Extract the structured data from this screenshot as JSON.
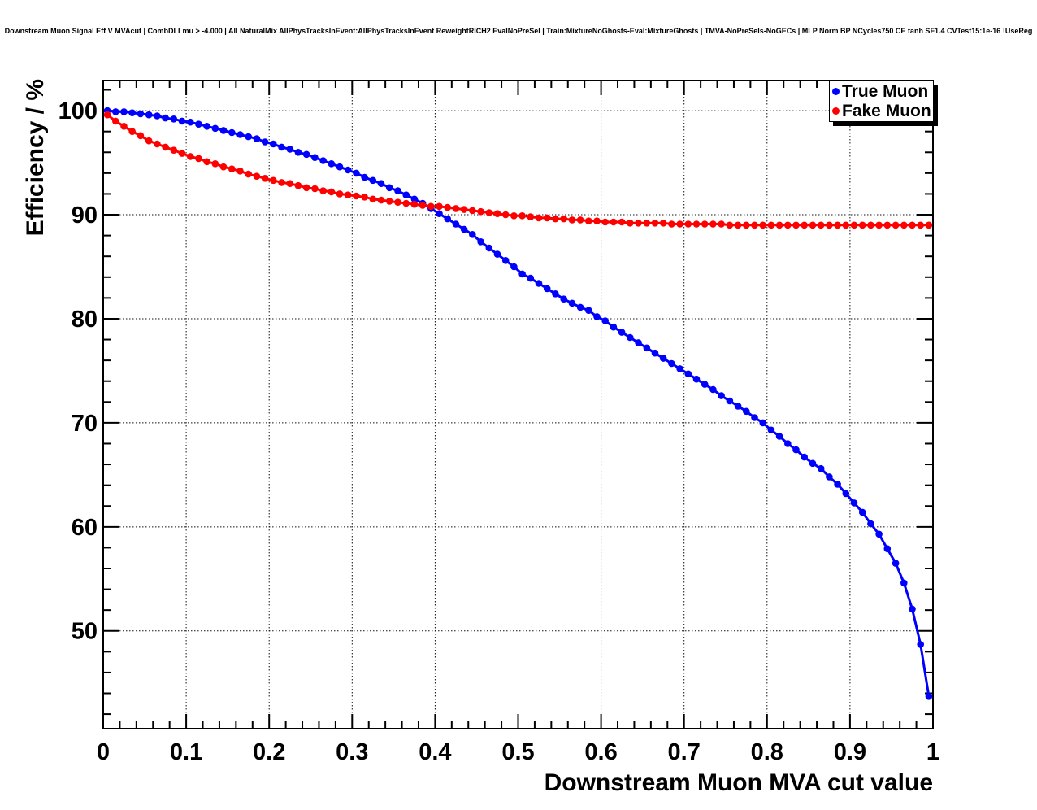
{
  "chart_data": {
    "type": "scatter",
    "title": "Downstream Muon Signal Eff V MVAcut | CombDLLmu > -4.000 | All NaturalMix AllPhysTracksInEvent:AllPhysTracksInEvent ReweightRICH2 EvalNoPreSel | Train:MixtureNoGhosts-Eval:MixtureGhosts | TMVA-NoPreSels-NoGECs | MLP Norm BP NCycles750 CE tanh SF1.4 CVTest15:1e-16 !UseReg",
    "xlabel": "Downstream Muon MVA cut value",
    "ylabel": "Efficiency / %",
    "xlim": [
      0,
      1
    ],
    "ylim": [
      40.6,
      102.9
    ],
    "x_major_ticks": [
      0,
      0.1,
      0.2,
      0.3,
      0.4,
      0.5,
      0.6,
      0.7,
      0.8,
      0.9,
      1
    ],
    "x_tick_labels": [
      "0",
      "0.1",
      "0.2",
      "0.3",
      "0.4",
      "0.5",
      "0.6",
      "0.7",
      "0.8",
      "0.9",
      "1"
    ],
    "x_minor_step": 0.02,
    "y_major_ticks": [
      50,
      60,
      70,
      80,
      90,
      100
    ],
    "y_tick_labels": [
      "50",
      "60",
      "70",
      "80",
      "90",
      "100"
    ],
    "y_minor_step": 2,
    "grid": "dotted-black-at-major-ticks",
    "marker": "filled-circle",
    "legend_position": "top-right",
    "frame_color": "#000000",
    "x": [
      0.005,
      0.015,
      0.025,
      0.035,
      0.045,
      0.055,
      0.065,
      0.075,
      0.085,
      0.095,
      0.105,
      0.115,
      0.125,
      0.135,
      0.145,
      0.155,
      0.165,
      0.175,
      0.185,
      0.195,
      0.205,
      0.215,
      0.225,
      0.235,
      0.245,
      0.255,
      0.265,
      0.275,
      0.285,
      0.295,
      0.305,
      0.315,
      0.325,
      0.335,
      0.345,
      0.355,
      0.365,
      0.375,
      0.385,
      0.395,
      0.405,
      0.415,
      0.425,
      0.435,
      0.445,
      0.455,
      0.465,
      0.475,
      0.485,
      0.495,
      0.505,
      0.515,
      0.525,
      0.535,
      0.545,
      0.555,
      0.565,
      0.575,
      0.585,
      0.595,
      0.605,
      0.615,
      0.625,
      0.635,
      0.645,
      0.655,
      0.665,
      0.675,
      0.685,
      0.695,
      0.705,
      0.715,
      0.725,
      0.735,
      0.745,
      0.755,
      0.765,
      0.775,
      0.785,
      0.795,
      0.805,
      0.815,
      0.825,
      0.835,
      0.845,
      0.855,
      0.865,
      0.875,
      0.885,
      0.895,
      0.905,
      0.915,
      0.925,
      0.935,
      0.945,
      0.955,
      0.965,
      0.975,
      0.985,
      0.995
    ],
    "series": [
      {
        "name": "True Muon",
        "color": "#0000ff",
        "values": [
          100.0,
          99.9,
          99.9,
          99.8,
          99.7,
          99.6,
          99.5,
          99.3,
          99.2,
          99.0,
          98.9,
          98.7,
          98.5,
          98.3,
          98.1,
          97.9,
          97.7,
          97.5,
          97.3,
          97.0,
          96.8,
          96.5,
          96.3,
          96.0,
          95.8,
          95.5,
          95.2,
          94.9,
          94.6,
          94.3,
          94.0,
          93.6,
          93.3,
          93.0,
          92.6,
          92.3,
          91.9,
          91.5,
          91.1,
          90.6,
          90.1,
          89.6,
          89.1,
          88.6,
          88.1,
          87.4,
          86.8,
          86.2,
          85.6,
          85.0,
          84.3,
          83.9,
          83.4,
          82.9,
          82.4,
          81.9,
          81.5,
          81.1,
          80.8,
          80.2,
          79.8,
          79.2,
          78.7,
          78.2,
          77.7,
          77.2,
          76.7,
          76.2,
          75.7,
          75.2,
          74.7,
          74.2,
          73.7,
          73.2,
          72.6,
          72.1,
          71.6,
          71.1,
          70.5,
          70.0,
          69.3,
          68.7,
          68.0,
          67.4,
          66.7,
          66.1,
          65.6,
          64.8,
          64.1,
          63.2,
          62.3,
          61.4,
          60.3,
          59.3,
          57.9,
          56.5,
          54.6,
          52.1,
          48.7,
          43.7
        ]
      },
      {
        "name": "Fake Muon",
        "color": "#ff0000",
        "values": [
          99.6,
          99.0,
          98.5,
          98.0,
          97.6,
          97.1,
          96.8,
          96.5,
          96.2,
          95.9,
          95.6,
          95.4,
          95.1,
          94.9,
          94.6,
          94.4,
          94.2,
          93.9,
          93.7,
          93.5,
          93.3,
          93.1,
          93.0,
          92.8,
          92.6,
          92.5,
          92.3,
          92.2,
          92.0,
          91.9,
          91.8,
          91.7,
          91.5,
          91.4,
          91.3,
          91.2,
          91.1,
          91.0,
          90.9,
          90.8,
          90.8,
          90.7,
          90.6,
          90.5,
          90.4,
          90.3,
          90.2,
          90.1,
          90.0,
          89.9,
          89.9,
          89.8,
          89.7,
          89.7,
          89.6,
          89.6,
          89.5,
          89.5,
          89.4,
          89.4,
          89.3,
          89.3,
          89.3,
          89.2,
          89.2,
          89.2,
          89.2,
          89.2,
          89.1,
          89.1,
          89.1,
          89.1,
          89.1,
          89.1,
          89.1,
          89.0,
          89.0,
          89.0,
          89.0,
          89.0,
          89.0,
          89.0,
          89.0,
          89.0,
          89.0,
          89.0,
          89.0,
          89.0,
          89.0,
          89.0,
          89.0,
          89.0,
          89.0,
          89.0,
          89.0,
          89.0,
          89.0,
          89.0,
          89.0,
          89.0
        ]
      }
    ]
  },
  "legend": {
    "items": [
      {
        "label": "True Muon",
        "color": "#0000ff"
      },
      {
        "label": "Fake Muon",
        "color": "#ff0000"
      }
    ]
  }
}
